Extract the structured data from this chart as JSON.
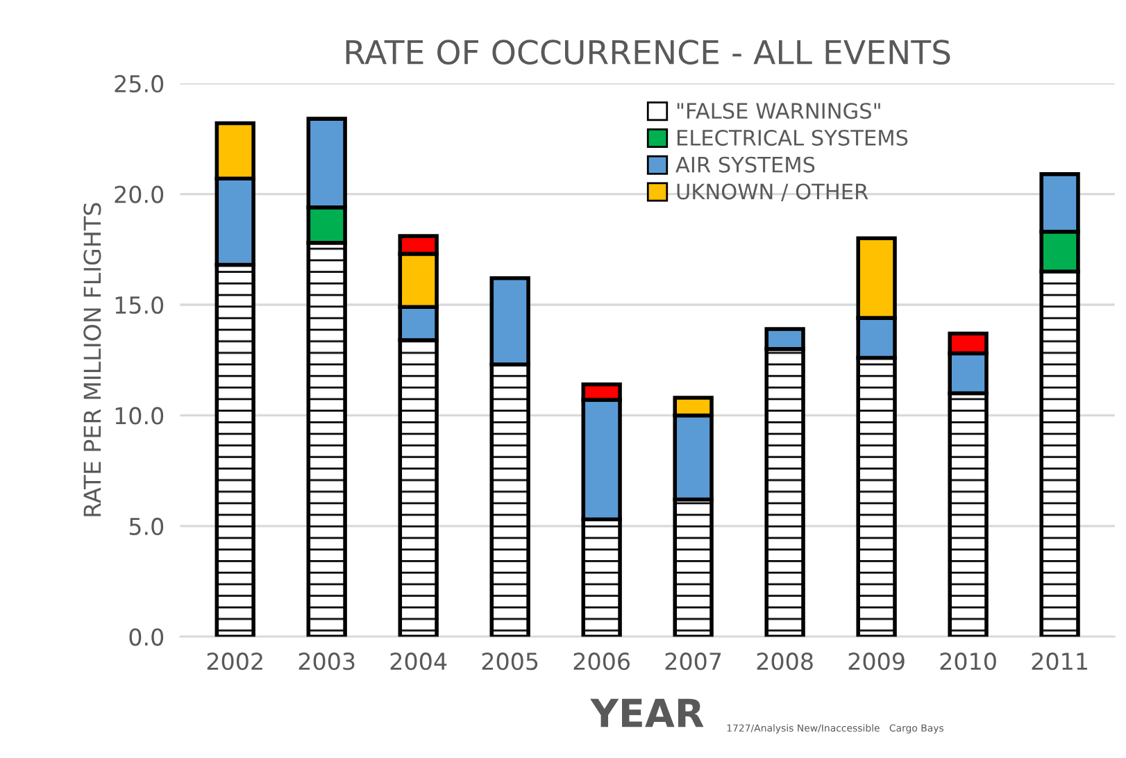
{
  "chart_data": {
    "type": "bar",
    "stacked": true,
    "title": "RATE OF OCCURRENCE - ALL EVENTS",
    "xlabel": "YEAR",
    "ylabel": "RATE PER MILLION FLIGHTS",
    "annotations": [
      "1727/Analysis New/Inaccessible   Cargo Bays"
    ],
    "categories": [
      "2002",
      "2003",
      "2004",
      "2005",
      "2006",
      "2007",
      "2008",
      "2009",
      "2010",
      "2011"
    ],
    "series": [
      {
        "name": "\"FALSE WARNINGS\"",
        "color": "#ffffff",
        "values": [
          16.8,
          17.8,
          13.4,
          12.3,
          5.3,
          6.2,
          13.0,
          12.6,
          11.0,
          16.5
        ]
      },
      {
        "name": "ELECTRICAL SYSTEMS",
        "color": "#00b050",
        "values": [
          null,
          1.6,
          null,
          null,
          null,
          null,
          null,
          null,
          null,
          1.8
        ]
      },
      {
        "name": "AIR SYSTEMS",
        "color": "#5b9bd5",
        "values": [
          3.9,
          4.0,
          1.5,
          3.9,
          5.4,
          3.8,
          0.9,
          1.8,
          1.8,
          2.6
        ]
      },
      {
        "name": "UKNOWN / OTHER",
        "color": "#ffc000",
        "values": [
          2.5,
          null,
          2.4,
          null,
          null,
          0.8,
          null,
          3.6,
          null,
          null
        ]
      },
      {
        "color": "#ff0000",
        "values": [
          null,
          null,
          0.8,
          null,
          0.7,
          null,
          null,
          null,
          0.9,
          null
        ]
      }
    ],
    "ylim": [
      0,
      25
    ],
    "yticks": [
      {
        "value": 0,
        "label": "0.0"
      },
      {
        "value": 5,
        "label": "5.0"
      },
      {
        "value": 10,
        "label": "10.0"
      },
      {
        "value": 15,
        "label": "15.0"
      },
      {
        "value": 20,
        "label": "20.0"
      },
      {
        "value": 25,
        "label": "25.0"
      }
    ],
    "grid": "y",
    "legend": "top right"
  }
}
